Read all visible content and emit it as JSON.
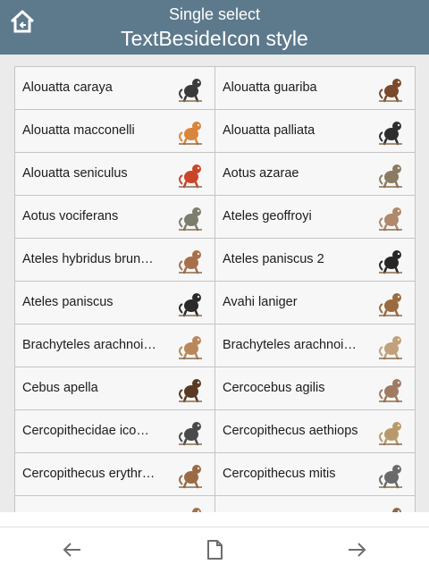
{
  "header": {
    "subtitle": "Single select",
    "title": "TextBesideIcon style"
  },
  "items": [
    {
      "label": "Alouatta caraya",
      "icon": "black-howler-monkey-icon",
      "color": "#3a3a3a"
    },
    {
      "label": "Alouatta guariba",
      "icon": "brown-howler-monkey-icon",
      "color": "#7a4a2a"
    },
    {
      "label": "Alouatta macconelli",
      "icon": "orange-howler-monkey-icon",
      "color": "#d9853b"
    },
    {
      "label": "Alouatta palliata",
      "icon": "mantled-howler-monkey-icon",
      "color": "#2e2e2e"
    },
    {
      "label": "Alouatta seniculus",
      "icon": "red-howler-monkey-icon",
      "color": "#c9452a"
    },
    {
      "label": "Aotus azarae",
      "icon": "night-monkey-icon",
      "color": "#8b7b63"
    },
    {
      "label": "Aotus vociferans",
      "icon": "night-monkey-icon",
      "color": "#7d7d6d"
    },
    {
      "label": "Ateles geoffroyi",
      "icon": "spider-monkey-icon",
      "color": "#b0886a"
    },
    {
      "label": "Ateles hybridus brun…",
      "icon": "hanging-spider-monkey-icon",
      "color": "#a86f4c"
    },
    {
      "label": "Ateles paniscus 2",
      "icon": "black-spider-monkey-icon",
      "color": "#262626"
    },
    {
      "label": "Ateles paniscus",
      "icon": "hanging-spider-monkey-icon",
      "color": "#2a2a2a"
    },
    {
      "label": "Avahi laniger",
      "icon": "woolly-lemur-icon",
      "color": "#9a6b3e"
    },
    {
      "label": "Brachyteles arachnoi…",
      "icon": "hanging-muriqui-icon",
      "color": "#b8875a"
    },
    {
      "label": "Brachyteles arachnoi…",
      "icon": "hanging-muriqui-icon",
      "color": "#c2a07a"
    },
    {
      "label": "Cebus apella",
      "icon": "capuchin-icon",
      "color": "#5a3a22"
    },
    {
      "label": "Cercocebus agilis",
      "icon": "mangabey-icon",
      "color": "#a07a62"
    },
    {
      "label": "Cercopithecidae ico…",
      "icon": "walking-monkey-icon",
      "color": "#4a4a4a"
    },
    {
      "label": "Cercopithecus aethiops",
      "icon": "vervet-monkey-icon",
      "color": "#b89a6a"
    },
    {
      "label": "Cercopithecus erythr…",
      "icon": "sitting-guenon-icon",
      "color": "#9a6a45"
    },
    {
      "label": "Cercopithecus mitis",
      "icon": "blue-monkey-icon",
      "color": "#6a6a6a"
    },
    {
      "label": "",
      "icon": "monkey-icon",
      "color": "#a0704a"
    },
    {
      "label": "",
      "icon": "monkey-icon",
      "color": "#8a6a4a"
    }
  ]
}
